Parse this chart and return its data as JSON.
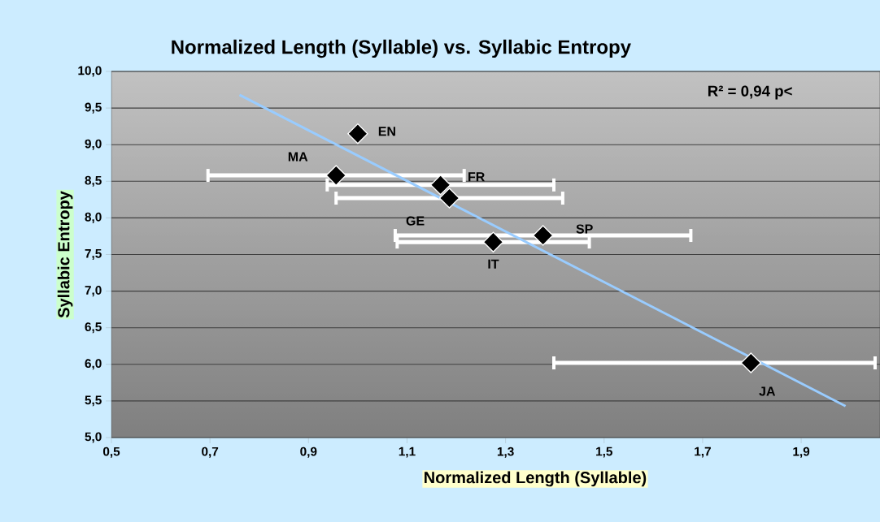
{
  "chart_data": {
    "type": "scatter",
    "title": "Normalized Length (Syllable) vs. Syllabic Entropy",
    "xlabel": "Normalized Length (Syllable)",
    "ylabel": "Syllabic Entropy",
    "annotations": [
      "R² = 0,94 p<"
    ],
    "xlim": [
      0.5,
      2.06
    ],
    "ylim": [
      5,
      10
    ],
    "xticks": [
      {
        "value": 0.5,
        "label": "0,5"
      },
      {
        "value": 0.7,
        "label": "0,7"
      },
      {
        "value": 0.9,
        "label": "0,9"
      },
      {
        "value": 1.1,
        "label": "1,1"
      },
      {
        "value": 1.3,
        "label": "1,3"
      },
      {
        "value": 1.5,
        "label": "1,5"
      },
      {
        "value": 1.7,
        "label": "1,7"
      },
      {
        "value": 1.9,
        "label": "1,9"
      }
    ],
    "yticks": [
      {
        "value": 5,
        "label": "5,0"
      },
      {
        "value": 5.5,
        "label": "5,5"
      },
      {
        "value": 6,
        "label": "6,0"
      },
      {
        "value": 6.5,
        "label": "6,5"
      },
      {
        "value": 7,
        "label": "7,0"
      },
      {
        "value": 7.5,
        "label": "7,5"
      },
      {
        "value": 8,
        "label": "8,0"
      },
      {
        "value": 8.5,
        "label": "8,5"
      },
      {
        "value": 9,
        "label": "9,0"
      },
      {
        "value": 9.5,
        "label": "9,5"
      },
      {
        "value": 10,
        "label": "10,0"
      }
    ],
    "grid": "y",
    "marker": "diamond",
    "series": [
      {
        "name": "EN",
        "color": "#000000",
        "x": [
          1.0
        ],
        "values": [
          9.15
        ],
        "xerrors": [
          null
        ]
      },
      {
        "name": "MA",
        "color": "#000000",
        "x": [
          0.956
        ],
        "values": [
          8.58
        ],
        "xerrors": [
          0.26
        ]
      },
      {
        "name": "FR",
        "color": "#000000",
        "x": [
          1.168
        ],
        "values": [
          8.45
        ],
        "xerrors": [
          0.23
        ]
      },
      {
        "name": "GE",
        "color": "#000000",
        "x": [
          1.186
        ],
        "values": [
          8.27
        ],
        "xerrors": [
          0.23
        ]
      },
      {
        "name": "SP",
        "color": "#000000",
        "x": [
          1.376
        ],
        "values": [
          7.76
        ],
        "xerrors": [
          0.3
        ]
      },
      {
        "name": "IT",
        "color": "#000000",
        "x": [
          1.275
        ],
        "values": [
          7.67
        ],
        "xerrors": [
          0.195
        ]
      },
      {
        "name": "JA",
        "color": "#000000",
        "x": [
          1.798
        ],
        "values": [
          6.02
        ],
        "xerrors": [
          [
            1.398,
            2.05
          ]
        ]
      },
      {
        "type": "line",
        "color": "#99ccff",
        "marker": "none",
        "x": [
          0.76,
          1.99
        ],
        "values": [
          9.68,
          5.43
        ]
      }
    ]
  }
}
